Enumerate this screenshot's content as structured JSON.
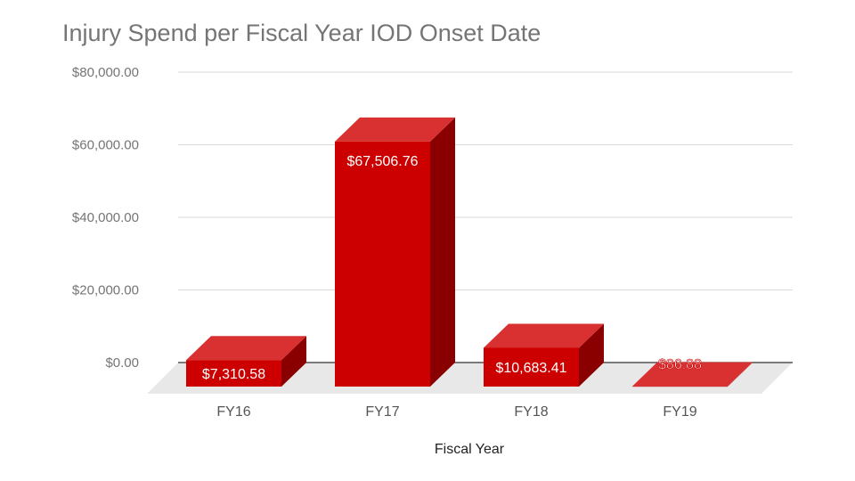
{
  "chart_data": {
    "type": "bar",
    "title": "Injury Spend per Fiscal Year IOD Onset Date",
    "xlabel": "Fiscal Year",
    "ylabel": "",
    "categories": [
      "FY16",
      "FY17",
      "FY18",
      "FY19"
    ],
    "values": [
      7310.58,
      67506.76,
      10683.41,
      86.88
    ],
    "value_labels": [
      "$7,310.58",
      "$67,506.76",
      "$10,683.41",
      "$86.88"
    ],
    "ylim": [
      0,
      80000
    ],
    "yticks": [
      0,
      20000,
      40000,
      60000,
      80000
    ],
    "ytick_labels": [
      "$0.00",
      "$20,000.00",
      "$40,000.00",
      "$60,000.00",
      "$80,000.00"
    ],
    "grid": true,
    "legend": "none",
    "style": "3d",
    "colors": {
      "bar_front": "#cc0000",
      "bar_top": "#d93131",
      "bar_side": "#8a0000",
      "floor": "#e8e8e8",
      "grid": "#d9d9d9",
      "baseline": "#333333"
    }
  }
}
